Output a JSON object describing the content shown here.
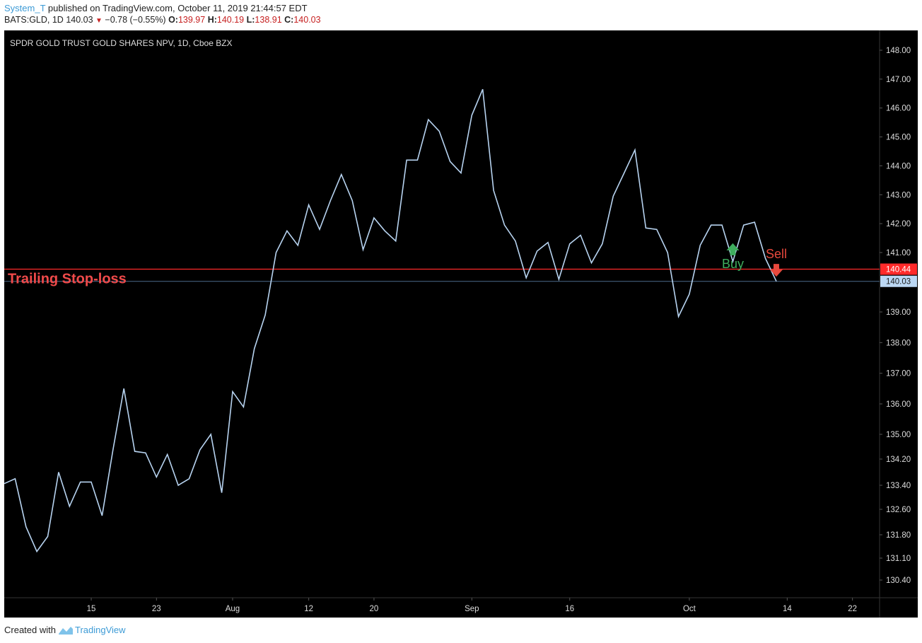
{
  "header": {
    "user": "System_T",
    "published": " published on TradingView.com, October 11, 2019 21:44:57 EDT",
    "symbol_interval": "BATS:GLD, 1D",
    "last": "140.03",
    "change": "−0.78 (−0.55%)",
    "o_label": "O:",
    "o_value": "139.97",
    "h_label": "H:",
    "h_value": "140.19",
    "l_label": "L:",
    "l_value": "138.91",
    "c_label": "C:",
    "c_value": "140.03"
  },
  "footer": {
    "created_with": "Created with",
    "brand": "TradingView"
  },
  "colors": {
    "background": "#000000",
    "line": "#b7d3f0",
    "stop": "#ff2a2a",
    "buy": "#3fae5e",
    "sell": "#e8493d",
    "stop_label": "#f04a4a",
    "last_price_bg": "#bcd8f4"
  },
  "chart_data": {
    "type": "line",
    "title": "SPDR GOLD TRUST GOLD SHARES NPV, 1D, Cboe BZX",
    "y_ticks": [
      "148.00",
      "147.00",
      "146.00",
      "145.00",
      "144.00",
      "143.00",
      "142.00",
      "141.00",
      "139.00",
      "138.00",
      "137.00",
      "136.00",
      "135.00",
      "134.20",
      "133.40",
      "132.60",
      "131.80",
      "131.10",
      "130.40"
    ],
    "x_ticks": [
      "15",
      "23",
      "Aug",
      "12",
      "20",
      "Sep",
      "16",
      "Oct",
      "14",
      "22"
    ],
    "series": [
      {
        "values": [
          133.45,
          133.6,
          132.05,
          131.3,
          131.75,
          133.8,
          132.7,
          133.5,
          133.5,
          132.4,
          134.5,
          136.5,
          134.45,
          134.4,
          133.65,
          134.35,
          133.4,
          133.6,
          134.5,
          135.0,
          133.15,
          136.4,
          135.9,
          137.8,
          138.9,
          141.0,
          141.75,
          141.25,
          142.65,
          141.8,
          142.8,
          143.7,
          142.8,
          141.1,
          142.2,
          141.75,
          141.4,
          144.2,
          144.2,
          145.6,
          145.2,
          144.15,
          143.75,
          145.75,
          146.65,
          143.15,
          141.95,
          141.4,
          140.15,
          141.05,
          141.35,
          140.1,
          141.3,
          141.6,
          140.65,
          141.3,
          142.95,
          143.75,
          144.55,
          141.85,
          141.8,
          141.0,
          138.85,
          139.6,
          141.25,
          141.95,
          141.95,
          140.7,
          141.95,
          142.05,
          140.8,
          140.03
        ]
      }
    ],
    "stop_loss": {
      "price": 140.44,
      "label": "Trailing Stop-loss",
      "tag": "140.44"
    },
    "last_price_tag": "140.03",
    "signals": [
      {
        "type": "buy",
        "label": "Buy",
        "index": 67,
        "price": 140.55
      },
      {
        "type": "sell",
        "label": "Sell",
        "index": 71,
        "price": 140.45
      }
    ],
    "grid": false,
    "legend": "none"
  }
}
